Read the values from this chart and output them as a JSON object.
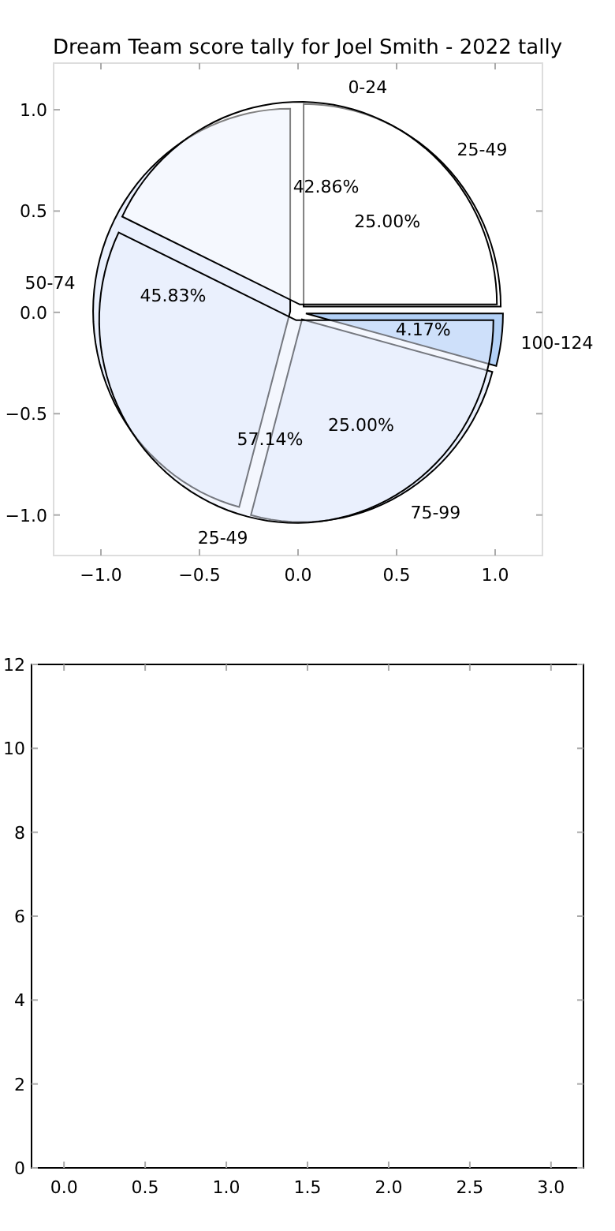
{
  "chart_data": [
    {
      "type": "scatter",
      "title": "Dream Team score tally for Joel Smith - 2022 tally",
      "xlim": [
        -1.24,
        1.24
      ],
      "ylim": [
        -1.2,
        1.23
      ],
      "xticks": [
        {
          "value": -1,
          "label": "−1.0"
        },
        {
          "value": -0.5,
          "label": "−0.5"
        },
        {
          "value": 0,
          "label": "0.0"
        },
        {
          "value": 0.5,
          "label": "0.5"
        },
        {
          "value": 1,
          "label": "1.0"
        }
      ],
      "yticks": [
        {
          "value": -1,
          "label": "−1.0"
        },
        {
          "value": -0.5,
          "label": "−0.5"
        },
        {
          "value": 0,
          "label": "0.0"
        },
        {
          "value": 0.5,
          "label": "0.5"
        },
        {
          "value": 1,
          "label": "1.0"
        }
      ]
    },
    {
      "type": "pie",
      "categories": [
        "0-24",
        "25-49"
      ],
      "values": [
        42.86,
        57.14
      ],
      "value_labels": [
        "42.86%",
        "57.14%"
      ],
      "colors": [
        "#ffffff",
        "#eaf0fd"
      ]
    },
    {
      "type": "pie",
      "categories": [
        "25-49",
        "50-74",
        "75-99",
        "100-124"
      ],
      "values": [
        25,
        45.83,
        25,
        4.17
      ],
      "value_labels": [
        "25.00%",
        "45.83%",
        "25.00%",
        "4.17%"
      ],
      "colors": [
        "#ffffff",
        "#eaf0fd",
        "#eaf0fd",
        "#b3d1f7"
      ]
    },
    {
      "type": "scatter",
      "xlim": [
        -0.2,
        3.2
      ],
      "ylim": [
        0,
        12
      ],
      "xticks": [
        {
          "value": 0,
          "label": "0.0"
        },
        {
          "value": 0.5,
          "label": "0.5"
        },
        {
          "value": 1,
          "label": "1.0"
        },
        {
          "value": 1.5,
          "label": "1.5"
        },
        {
          "value": 2,
          "label": "2.0"
        },
        {
          "value": 2.5,
          "label": "2.5"
        },
        {
          "value": 3,
          "label": "3.0"
        }
      ],
      "yticks": [
        0,
        2,
        4,
        6,
        8,
        10,
        12
      ]
    }
  ]
}
